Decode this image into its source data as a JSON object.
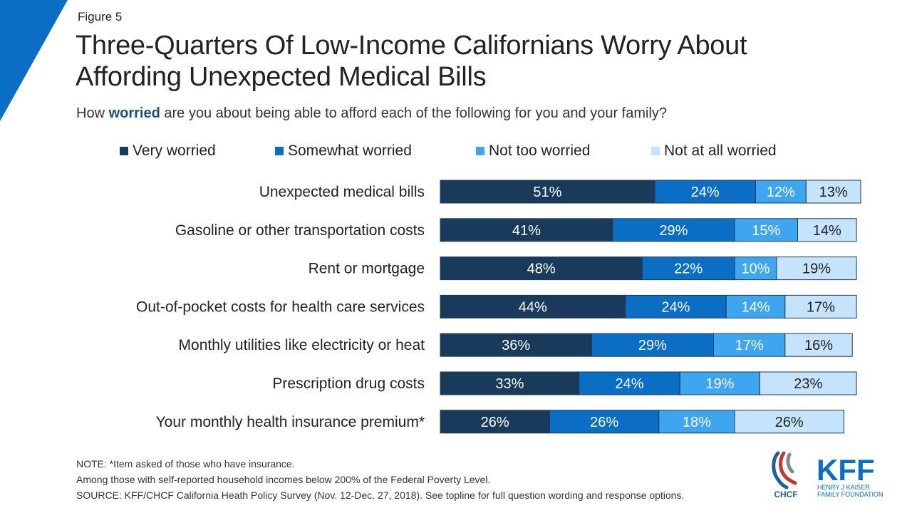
{
  "figure_label": "Figure 5",
  "title_line1": "Three-Quarters Of Low-Income Californians Worry About",
  "title_line2": "Affording Unexpected Medical Bills",
  "subtitle": {
    "before": "How ",
    "emphasis": "worried",
    "after": " are you about being able to afford each of the following for you and your family?"
  },
  "colors": {
    "very": "#1a3a5c",
    "somewhat": "#0a6ec4",
    "not_too": "#3ea6f0",
    "not_at_all": "#c5e4fb",
    "corner": "#0a6ec4"
  },
  "chart_data": {
    "type": "bar",
    "orientation": "horizontal",
    "stacked": true,
    "legend_position": "top",
    "categories": [
      "Unexpected medical bills",
      "Gasoline or other transportation costs",
      "Rent or mortgage",
      "Out-of-pocket costs for health care services",
      "Monthly utilities like electricity or heat",
      "Prescription drug costs",
      "Your monthly health insurance premium*"
    ],
    "series": [
      {
        "name": "Very worried",
        "values": [
          51,
          41,
          48,
          44,
          36,
          33,
          26
        ]
      },
      {
        "name": "Somewhat worried",
        "values": [
          24,
          29,
          22,
          24,
          29,
          24,
          26
        ]
      },
      {
        "name": "Not too worried",
        "values": [
          12,
          15,
          10,
          14,
          17,
          19,
          18
        ]
      },
      {
        "name": "Not at all worried",
        "values": [
          13,
          14,
          19,
          17,
          16,
          23,
          26
        ]
      }
    ],
    "value_suffix": "%"
  },
  "footer": {
    "note": "NOTE: *Item asked of those who have insurance.",
    "population": "Among those with self-reported household incomes below 200% of the Federal Poverty Level.",
    "source": "SOURCE: KFF/CHCF California Heath Policy Survey (Nov. 12-Dec. 27, 2018). See topline for full question wording and response options."
  },
  "logos": {
    "chcf": "CHCF",
    "kff": "KFF",
    "kff_sub1": "HENRY J KAISER",
    "kff_sub2": "FAMILY FOUNDATION"
  }
}
